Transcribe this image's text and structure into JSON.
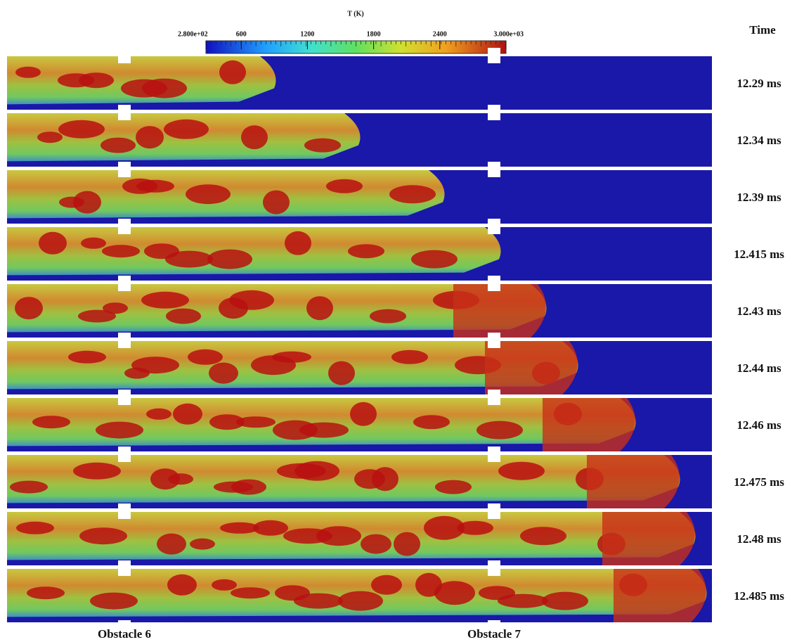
{
  "colorbar": {
    "title": "T (K)",
    "range": [
      280,
      3000
    ],
    "ticks": [
      {
        "value": 280,
        "label": "2.800e+02"
      },
      600,
      1200,
      1800,
      2400,
      {
        "value": 3000,
        "label": "3.000e+03"
      }
    ]
  },
  "time_header": "Time",
  "panels": [
    "12.29 ms",
    "12.34 ms",
    "12.39 ms",
    "12.415 ms",
    "12.43 ms",
    "12.44 ms",
    "12.46 ms",
    "12.475 ms",
    "12.48 ms",
    "12.485 ms"
  ],
  "obstacles": [
    "Obstacle 6",
    "Obstacle 7"
  ]
}
